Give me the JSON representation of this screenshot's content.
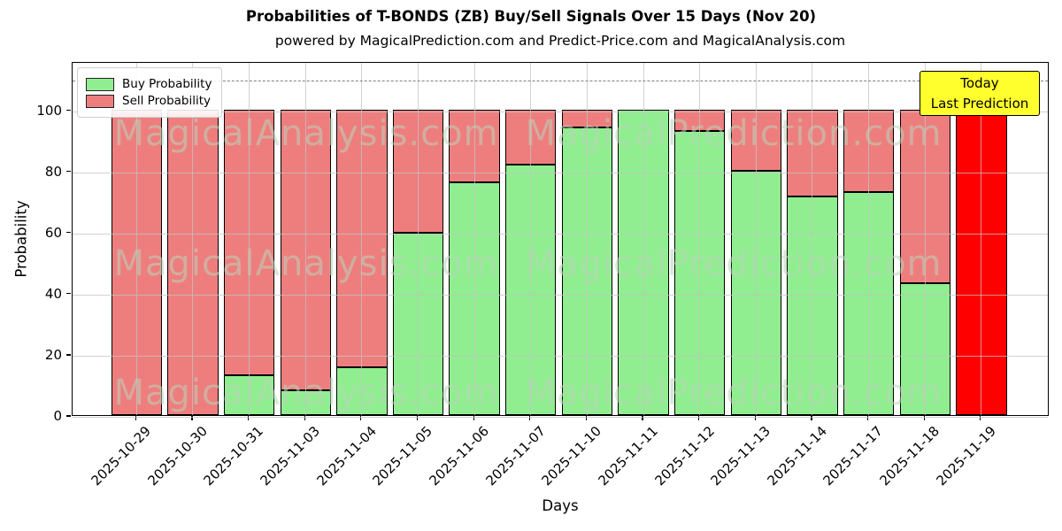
{
  "header": {
    "title": "Probabilities of T-BONDS (ZB) Buy/Sell Signals Over 15 Days (Nov 20)",
    "subtitle": "powered by MagicalPrediction.com and Predict-Price.com and MagicalAnalysis.com"
  },
  "legend": {
    "items": [
      {
        "label": "Buy Probability",
        "color": "#90ee90"
      },
      {
        "label": "Sell Probability",
        "color": "#ee7e7e"
      }
    ]
  },
  "annotation": {
    "line1": "Today",
    "line2": "Last Prediction",
    "bg_color": "#ffff2e"
  },
  "watermarks": {
    "left_text": "MagicalAnalysis.com",
    "right_text": "MagicalPrediction.com"
  },
  "chart_data": {
    "type": "bar",
    "stacked": true,
    "title": "Probabilities of T-BONDS (ZB) Buy/Sell Signals Over 15 Days (Nov 20)",
    "xlabel": "Days",
    "ylabel": "Probability",
    "categories": [
      "2025-10-29",
      "2025-10-30",
      "2025-10-31",
      "2025-11-03",
      "2025-11-04",
      "2025-11-05",
      "2025-11-06",
      "2025-11-07",
      "2025-11-10",
      "2025-11-11",
      "2025-11-12",
      "2025-11-13",
      "2025-11-14",
      "2025-11-17",
      "2025-11-18",
      "2025-11-19"
    ],
    "series": [
      {
        "name": "Buy Probability",
        "color": "#90ee90",
        "values": [
          0,
          0,
          13,
          8,
          15.5,
          59.5,
          76,
          82,
          94,
          100,
          93,
          80,
          71.5,
          73,
          43,
          0
        ]
      },
      {
        "name": "Sell Probability",
        "color": "#ee7e7e",
        "values": [
          100,
          100,
          87,
          92,
          84.5,
          40.5,
          24,
          18,
          6,
          0,
          7,
          20,
          28.5,
          27,
          57,
          100
        ]
      }
    ],
    "today_bar": {
      "category": "2025-11-19",
      "color": "#ff0000",
      "total": 100
    },
    "yticks": [
      0,
      20,
      40,
      60,
      80,
      100
    ],
    "ylim": [
      0,
      115.8
    ],
    "dashed_line_y": 110,
    "grid": true,
    "legend_position": "upper left",
    "bar_edge_color": "#000000"
  }
}
